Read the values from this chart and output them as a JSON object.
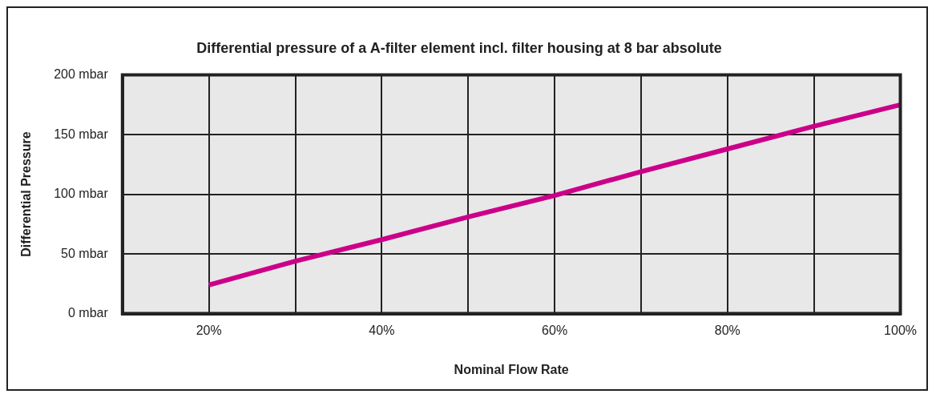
{
  "chart_data": {
    "type": "line",
    "title": "Differential pressure of a A-filter element incl. filter housing at 8 bar absolute",
    "xlabel": "Nominal Flow Rate",
    "ylabel": "Differential Pressure",
    "x": [
      20,
      30,
      40,
      50,
      60,
      70,
      80,
      90,
      100
    ],
    "series": [
      {
        "color": "#cc0088",
        "values": [
          24,
          44,
          62,
          81,
          99,
          119,
          138,
          157,
          175
        ]
      }
    ],
    "xlim": [
      10,
      100
    ],
    "xticks": [
      {
        "value": 10,
        "label": null
      },
      {
        "value": 20,
        "label": "20%"
      },
      {
        "value": 30,
        "label": null
      },
      {
        "value": 40,
        "label": "40%"
      },
      {
        "value": 50,
        "label": null
      },
      {
        "value": 60,
        "label": "60%"
      },
      {
        "value": 70,
        "label": null
      },
      {
        "value": 80,
        "label": "80%"
      },
      {
        "value": 90,
        "label": null
      },
      {
        "value": 100,
        "label": "100%"
      }
    ],
    "ylim": [
      0,
      200
    ],
    "yticks": [
      {
        "value": 0,
        "label": "0 mbar"
      },
      {
        "value": 50,
        "label": "50 mbar"
      },
      {
        "value": 100,
        "label": "100 mbar"
      },
      {
        "value": 150,
        "label": "150 mbar"
      },
      {
        "value": 200,
        "label": "200 mbar"
      }
    ],
    "grid": true,
    "legend": false,
    "marker": "none",
    "line_style": "solid"
  }
}
